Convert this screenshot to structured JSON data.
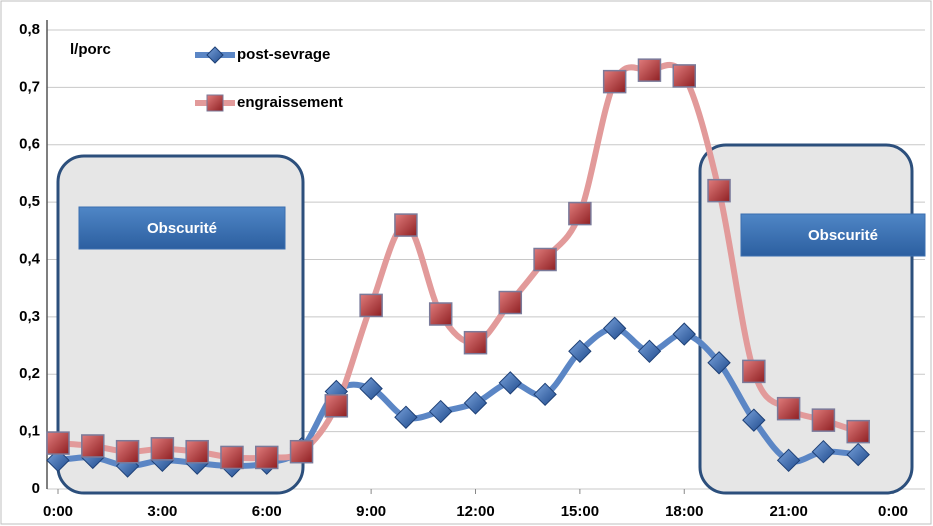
{
  "chart_data": {
    "type": "line",
    "y_label": "l/porc",
    "annotations": [
      "Obscurité",
      "Obscurité"
    ],
    "x": [
      0,
      1,
      2,
      3,
      4,
      5,
      6,
      7,
      8,
      9,
      10,
      11,
      12,
      13,
      14,
      15,
      16,
      17,
      18,
      19,
      20,
      21,
      22,
      23
    ],
    "xlim": [
      0,
      24
    ],
    "xticks": [
      {
        "value": 0,
        "label": "0:00"
      },
      {
        "value": 3,
        "label": "3:00"
      },
      {
        "value": 6,
        "label": "6:00"
      },
      {
        "value": 9,
        "label": "9:00"
      },
      {
        "value": 12,
        "label": "12:00"
      },
      {
        "value": 15,
        "label": "15:00"
      },
      {
        "value": 18,
        "label": "18:00"
      },
      {
        "value": 21,
        "label": "21:00"
      },
      {
        "value": 24,
        "label": "0:00"
      }
    ],
    "ylim": [
      0,
      0.8
    ],
    "yticks": [
      0,
      {
        "value": 0.1,
        "label": "0,1"
      },
      {
        "value": 0.2,
        "label": "0,2"
      },
      {
        "value": 0.3,
        "label": "0,3"
      },
      {
        "value": 0.4,
        "label": "0,4"
      },
      {
        "value": 0.5,
        "label": "0,5"
      },
      {
        "value": 0.6,
        "label": "0,6"
      },
      {
        "value": 0.7,
        "label": "0,7"
      },
      {
        "value": 0.8,
        "label": "0,8"
      }
    ],
    "grid": true,
    "series": [
      {
        "name": "post-sevrage",
        "color": "#2f5ea8",
        "line_color": "#5b86c5",
        "marker": "diamond",
        "values": [
          0.05,
          0.055,
          0.04,
          0.05,
          0.045,
          0.04,
          0.045,
          0.07,
          0.17,
          0.175,
          0.125,
          0.135,
          0.15,
          0.185,
          0.165,
          0.24,
          0.28,
          0.24,
          0.27,
          0.22,
          0.12,
          0.05,
          0.065,
          0.06
        ]
      },
      {
        "name": "engraissement",
        "color": "#b03a3a",
        "line_color": "#e29a9a",
        "marker": "square",
        "values": [
          0.08,
          0.075,
          0.065,
          0.07,
          0.065,
          0.055,
          0.055,
          0.065,
          0.145,
          0.32,
          0.46,
          0.305,
          0.255,
          0.325,
          0.4,
          0.48,
          0.71,
          0.73,
          0.72,
          0.52,
          0.205,
          0.14,
          0.12,
          0.1
        ]
      }
    ]
  }
}
